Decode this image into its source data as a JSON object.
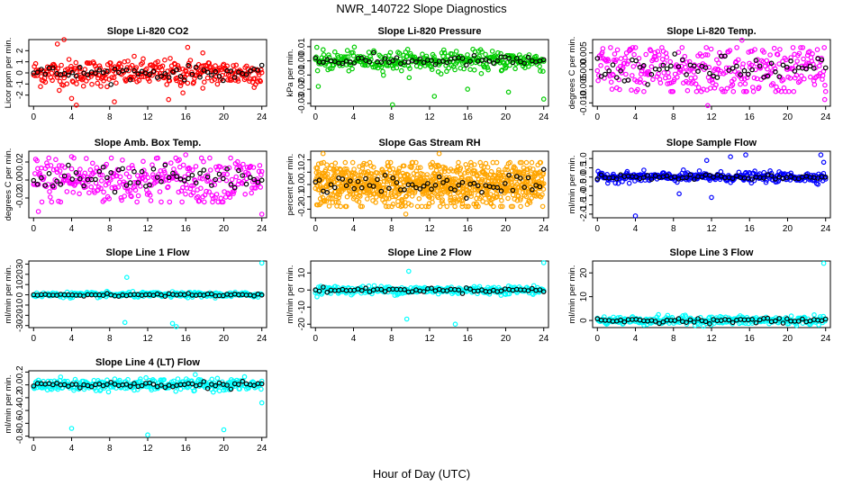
{
  "figure": {
    "title": "NWR_140722  Slope Diagnostics",
    "xlabel": "Hour of Day (UTC)"
  },
  "chart_data": [
    {
      "type": "scatter",
      "title": "Slope Li-820 CO2",
      "ylabel": "Licor ppm per min.",
      "color": "#ff0000",
      "xlim": [
        -0.5,
        24.5
      ],
      "ylim": [
        -3,
        3
      ],
      "xticks": [
        0,
        4,
        8,
        12,
        16,
        20,
        24
      ],
      "yticks": [
        -2,
        -1,
        0,
        1,
        2
      ],
      "ytick_labels": [
        "-2",
        "-1",
        "0",
        "1",
        "2"
      ],
      "n_points": 330,
      "spread": 0.6,
      "outliers": [
        [
          2.5,
          2.6
        ],
        [
          3.2,
          3.0
        ],
        [
          4.0,
          -2.3
        ],
        [
          4.5,
          -2.9
        ],
        [
          8.5,
          -2.6
        ],
        [
          14.2,
          -2.4
        ],
        [
          15.7,
          -1.8
        ],
        [
          16.2,
          2.3
        ],
        [
          17.8,
          1.8
        ]
      ]
    },
    {
      "type": "scatter",
      "title": "Slope Li-820 Pressure",
      "ylabel": "kPa per min.",
      "color": "#00cc00",
      "xlim": [
        -0.5,
        24.5
      ],
      "ylim": [
        -0.032,
        0.015
      ],
      "xticks": [
        0,
        4,
        8,
        12,
        16,
        20,
        24
      ],
      "yticks": [
        -0.03,
        -0.02,
        -0.01,
        0,
        0.01
      ],
      "ytick_labels": [
        "-0.03",
        "-0.02",
        "-0.01",
        "0.00",
        "0.01"
      ],
      "n_points": 330,
      "spread": 0.0035,
      "outliers": [
        [
          0.3,
          -0.018
        ],
        [
          8.1,
          -0.031
        ],
        [
          12.5,
          -0.025
        ],
        [
          16.0,
          -0.02
        ],
        [
          20.3,
          -0.022
        ],
        [
          24.0,
          -0.027
        ]
      ]
    },
    {
      "type": "scatter",
      "title": "Slope Li-820 Temp.",
      "ylabel": "degrees C per min.",
      "color": "#ff00ff",
      "xlim": [
        -0.5,
        24.5
      ],
      "ylim": [
        -0.011,
        0.009
      ],
      "xticks": [
        0,
        4,
        8,
        12,
        16,
        20,
        24
      ],
      "yticks": [
        -0.01,
        -0.005,
        0,
        0.005
      ],
      "ytick_labels": [
        "-0.010",
        "-0.005",
        "0.000",
        "0.005"
      ],
      "n_points": 330,
      "spread": 0.004,
      "outliers": [
        [
          11.6,
          -0.0108
        ],
        [
          15.2,
          0.0088
        ],
        [
          23.9,
          -0.009
        ]
      ]
    },
    {
      "type": "scatter",
      "title": "Slope Amb. Box Temp.",
      "ylabel": "degrees C per min.",
      "color": "#ff00ff",
      "xlim": [
        -0.5,
        24.5
      ],
      "ylim": [
        -0.042,
        0.032
      ],
      "xticks": [
        0,
        4,
        8,
        12,
        16,
        20,
        24
      ],
      "yticks": [
        -0.02,
        0,
        0.02
      ],
      "ytick_labels": [
        "-0.02",
        "0.00",
        "0.02"
      ],
      "n_points": 330,
      "spread": 0.014,
      "outliers": [
        [
          0.5,
          -0.035
        ],
        [
          4.0,
          0.026
        ],
        [
          16.0,
          0.028
        ],
        [
          24.0,
          -0.038
        ]
      ]
    },
    {
      "type": "scatter",
      "title": "Slope Gas Stream RH",
      "ylabel": "percent per min.",
      "color": "#ffa500",
      "xlim": [
        -0.5,
        24.5
      ],
      "ylim": [
        -0.27,
        0.27
      ],
      "xticks": [
        0,
        4,
        8,
        12,
        16,
        20,
        24
      ],
      "yticks": [
        -0.2,
        -0.1,
        0,
        0.1,
        0.2
      ],
      "ytick_labels": [
        "-0.2",
        "-0.1",
        "0.0",
        "0.1",
        "0.2"
      ],
      "n_points": 900,
      "spread": 0.09,
      "outliers": [
        [
          0.8,
          0.25
        ],
        [
          13.0,
          0.25
        ],
        [
          9.5,
          -0.24
        ]
      ]
    },
    {
      "type": "scatter",
      "title": "Slope Sample Flow",
      "ylabel": "ml/min per min.",
      "color": "#0000ff",
      "xlim": [
        -0.5,
        24.5
      ],
      "ylim": [
        -2.2,
        1.4
      ],
      "xticks": [
        0,
        4,
        8,
        12,
        16,
        20,
        24
      ],
      "yticks": [
        -2,
        -1.5,
        -1,
        -0.5,
        0,
        0.5,
        1
      ],
      "ytick_labels": [
        "-2.0",
        "-1.5",
        "-1.0",
        "-0.5",
        "0.0",
        "0.5",
        "1.0"
      ],
      "n_points": 330,
      "spread": 0.13,
      "outliers": [
        [
          4.0,
          -2.1
        ],
        [
          11.5,
          0.9
        ],
        [
          12.0,
          -1.1
        ],
        [
          14.0,
          1.1
        ],
        [
          15.6,
          1.2
        ],
        [
          8.6,
          -0.9
        ],
        [
          23.5,
          1.2
        ],
        [
          23.8,
          0.8
        ]
      ]
    },
    {
      "type": "scatter",
      "title": "Slope Line 1 Flow",
      "ylabel": "ml/min per min.",
      "color": "#00ffff",
      "xlim": [
        -0.5,
        24.5
      ],
      "ylim": [
        -32,
        33
      ],
      "xticks": [
        0,
        4,
        8,
        12,
        16,
        20,
        24
      ],
      "yticks": [
        -30,
        -20,
        -10,
        0,
        10,
        20,
        30
      ],
      "ytick_labels": [
        "-30",
        "-20",
        "-10",
        "0",
        "10",
        "20",
        "30"
      ],
      "n_points": 300,
      "spread": 1.2,
      "outliers": [
        [
          9.6,
          -27
        ],
        [
          9.8,
          17
        ],
        [
          14.6,
          -28
        ],
        [
          15.0,
          -31
        ],
        [
          24.0,
          31
        ]
      ]
    },
    {
      "type": "scatter",
      "title": "Slope Line 2 Flow",
      "ylabel": "ml/min per min.",
      "color": "#00ffff",
      "xlim": [
        -0.5,
        24.5
      ],
      "ylim": [
        -22,
        17
      ],
      "xticks": [
        0,
        4,
        8,
        12,
        16,
        20,
        24
      ],
      "yticks": [
        -20,
        -10,
        0,
        10
      ],
      "ytick_labels": [
        "-20",
        "-10",
        "0",
        "10"
      ],
      "n_points": 300,
      "spread": 1.2,
      "outliers": [
        [
          9.6,
          -17
        ],
        [
          9.8,
          11
        ],
        [
          14.7,
          -20
        ],
        [
          24.0,
          16
        ]
      ]
    },
    {
      "type": "scatter",
      "title": "Slope Line 3 Flow",
      "ylabel": "ml/min per min.",
      "color": "#00ffff",
      "xlim": [
        -0.5,
        24.5
      ],
      "ylim": [
        -3,
        25
      ],
      "xticks": [
        0,
        4,
        8,
        12,
        16,
        20,
        24
      ],
      "yticks": [
        0,
        10,
        20
      ],
      "ytick_labels": [
        "0",
        "10",
        "20"
      ],
      "n_points": 300,
      "spread": 0.9,
      "outliers": [
        [
          23.8,
          24
        ]
      ]
    },
    {
      "type": "scatter",
      "title": "Slope Line 4 (LT) Flow",
      "ylabel": "ml/min per min.",
      "color": "#00ffff",
      "xlim": [
        -0.5,
        24.5
      ],
      "ylim": [
        -0.82,
        0.22
      ],
      "xticks": [
        0,
        4,
        8,
        12,
        16,
        20,
        24
      ],
      "yticks": [
        -0.8,
        -0.6,
        -0.4,
        -0.2,
        0,
        0.2
      ],
      "ytick_labels": [
        "-0.8",
        "-0.6",
        "-0.4",
        "-0.2",
        "0.0",
        "0.2"
      ],
      "n_points": 330,
      "spread": 0.045,
      "outliers": [
        [
          4.0,
          -0.68
        ],
        [
          12.0,
          -0.78
        ],
        [
          20.0,
          -0.7
        ],
        [
          24.0,
          -0.28
        ]
      ]
    }
  ]
}
